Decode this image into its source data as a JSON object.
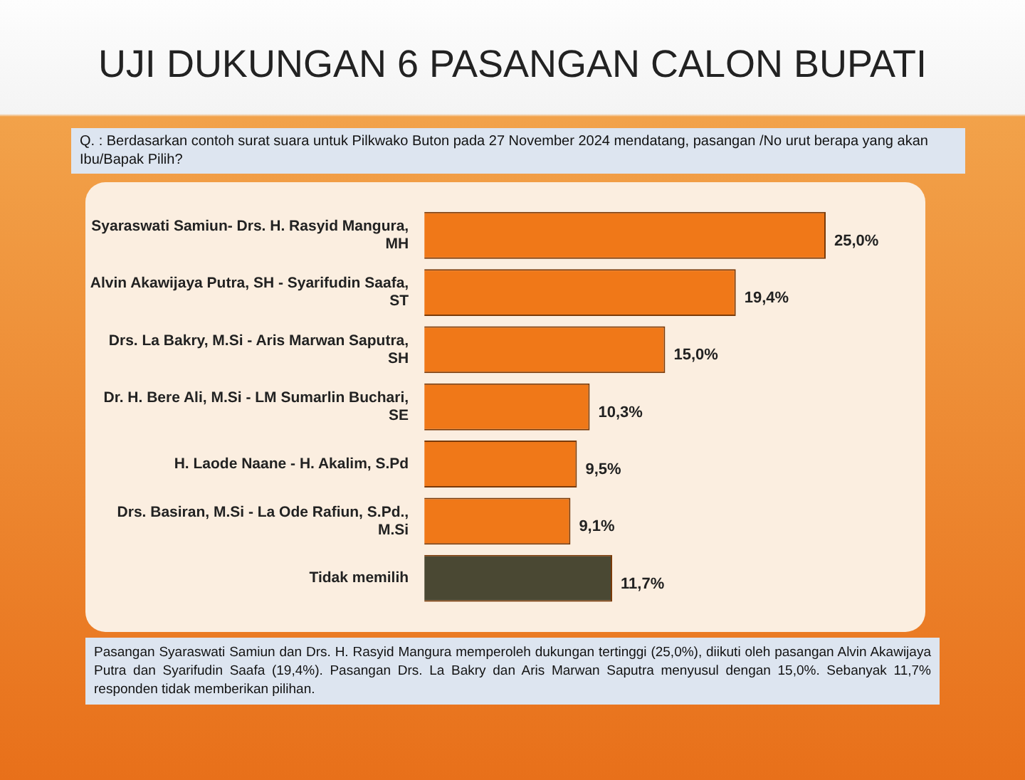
{
  "chart_data": {
    "type": "bar",
    "orientation": "horizontal",
    "title": "UJI DUKUNGAN 6 PASANGAN CALON BUPATI",
    "subtitle": "Q. : Berdasarkan contoh surat suara untuk Pilkwako Buton pada 27 November 2024 mendatang, pasangan /No urut berapa yang akan Ibu/Bapak Pilih?",
    "categories": [
      "Syaraswati Samiun- Drs. H. Rasyid Mangura, MH",
      "Alvin Akawijaya Putra, SH - Syarifudin Saafa, ST",
      "Drs. La Bakry, M.Si - Aris Marwan Saputra, SH",
      "Dr. H. Bere Ali, M.Si - LM Sumarlin Buchari, SE",
      "H. Laode Naane - H. Akalim, S.Pd",
      "Drs. Basiran, M.Si - La Ode Rafiun, S.Pd., M.Si",
      "Tidak memilih"
    ],
    "values": [
      25.0,
      19.4,
      15.0,
      10.3,
      9.5,
      9.1,
      11.7
    ],
    "colors": [
      "#f07818",
      "#f07818",
      "#f07818",
      "#f07818",
      "#f07818",
      "#f07818",
      "#4a4833"
    ],
    "value_labels": [
      "25,0%",
      "19,4%",
      "15,0%",
      "10,3%",
      "9,5%",
      "9,1%",
      "11,7%"
    ],
    "tick_labels": "y",
    "annotations": [
      "Pasangan Syaraswati Samiun dan Drs. H. Rasyid Mangura memperoleh dukungan tertinggi (25,0%), diikuti oleh pasangan Alvin Akawijaya Putra dan Syarifudin Saafa (19,4%). Pasangan Drs. La Bakry dan Aris Marwan Saputra menyusul dengan 15,0%. Sebanyak 11,7% responden tidak memberikan pilihan."
    ]
  }
}
